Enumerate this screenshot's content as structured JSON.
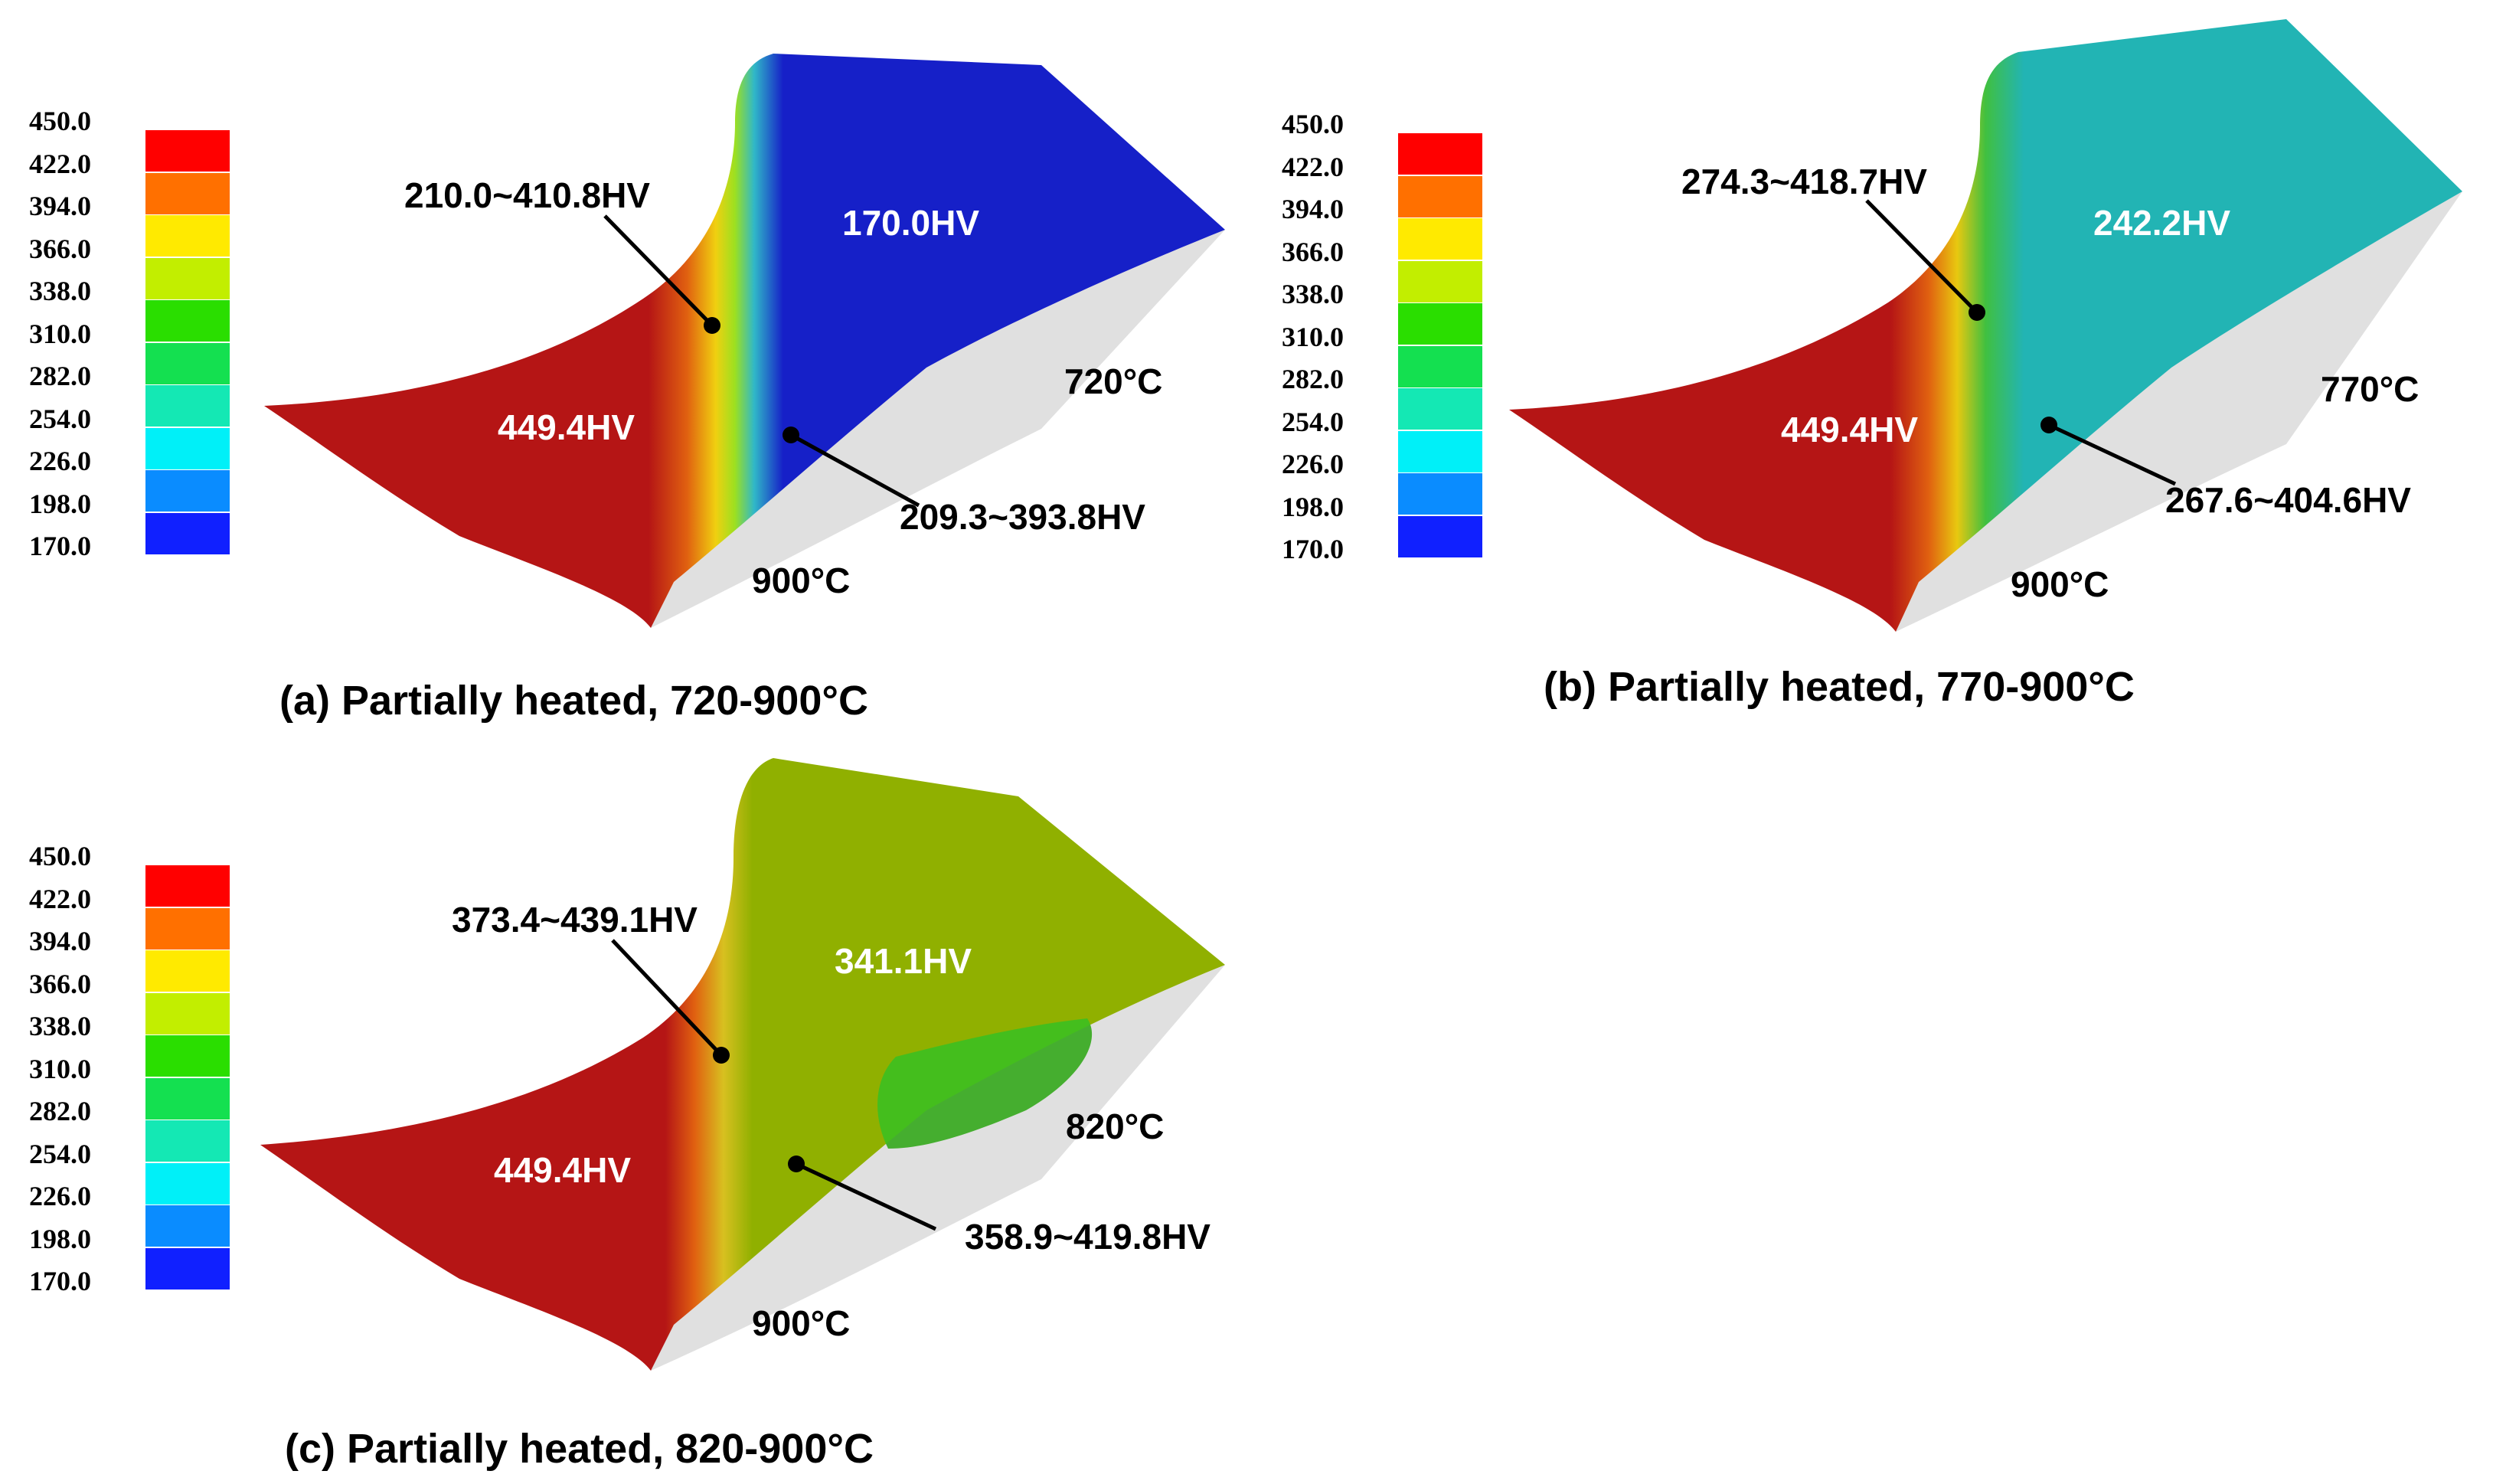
{
  "scale_labels": [
    "450.0",
    "422.0",
    "394.0",
    "366.0",
    "338.0",
    "310.0",
    "282.0",
    "254.0",
    "226.0",
    "198.0",
    "170.0"
  ],
  "scale_colors": [
    "#ff0000",
    "#ff7000",
    "#ffea00",
    "#c2ee00",
    "#2ade00",
    "#14e050",
    "#14e8b4",
    "#00f0f8",
    "#0a8cff",
    "#1020ff"
  ],
  "panels": [
    {
      "caption": "(a) Partially heated, 720-900°C",
      "part_color": "#1620c8",
      "hot_hv": "449.4HV",
      "cold_hv": "170.0HV",
      "upper_range": "210.0~410.8HV",
      "lower_range": "209.3~393.8HV",
      "cold_temp": "720°C",
      "hot_temp": "900°C"
    },
    {
      "caption": "(b) Partially heated, 770-900°C",
      "part_color": "#22b4b4",
      "hot_hv": "449.4HV",
      "cold_hv": "242.2HV",
      "upper_range": "274.3~418.7HV",
      "lower_range": "267.6~404.6HV",
      "cold_temp": "770°C",
      "hot_temp": "900°C"
    },
    {
      "caption": "(c) Partially heated, 820-900°C",
      "part_color": "#90b000",
      "hot_hv": "449.4HV",
      "cold_hv": "341.1HV",
      "upper_range": "373.4~439.1HV",
      "lower_range": "358.9~419.8HV",
      "cold_temp": "820°C",
      "hot_temp": "900°C"
    }
  ]
}
